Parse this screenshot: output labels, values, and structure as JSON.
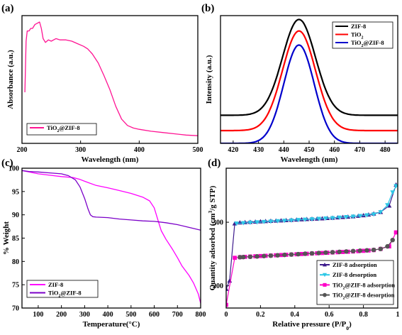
{
  "chart_data": [
    {
      "panel_label": "(a)",
      "type": "line",
      "xlabel": "Wavelength (nm)",
      "ylabel": "Absorbance (a.u.)",
      "xlim": [
        200,
        500
      ],
      "xticks": [
        200,
        300,
        400,
        500
      ],
      "ylim": [
        0,
        1
      ],
      "y_ticks_shown": false,
      "legend_position": "bottom-left",
      "series": [
        {
          "name": "TiO2@ZIF-8",
          "color": "#ff1493",
          "x": [
            205,
            207,
            209,
            212,
            215,
            218,
            222,
            226,
            230,
            233,
            236,
            240,
            245,
            250,
            258,
            265,
            275,
            285,
            295,
            305,
            312,
            320,
            330,
            340,
            350,
            360,
            370,
            380,
            390,
            400,
            420,
            440,
            460,
            480,
            500
          ],
          "y": [
            0.4,
            0.8,
            0.88,
            0.88,
            0.9,
            0.9,
            0.93,
            0.94,
            0.95,
            0.9,
            0.82,
            0.79,
            0.81,
            0.8,
            0.82,
            0.81,
            0.81,
            0.8,
            0.78,
            0.76,
            0.74,
            0.7,
            0.63,
            0.53,
            0.42,
            0.29,
            0.19,
            0.14,
            0.12,
            0.11,
            0.095,
            0.085,
            0.075,
            0.065,
            0.06
          ]
        }
      ]
    },
    {
      "panel_label": "(b)",
      "type": "line",
      "xlabel": "Wavelength (nm)",
      "ylabel": "Intensity (a.u.)",
      "xlim": [
        415,
        485
      ],
      "xticks": [
        420,
        430,
        440,
        450,
        460,
        470,
        480
      ],
      "ylim": [
        0,
        1
      ],
      "y_ticks_shown": false,
      "legend_position": "top-right",
      "series": [
        {
          "name": "ZIF-8",
          "color": "#000000",
          "center": 446,
          "baseline": 0.22,
          "peak": 0.97,
          "width": 6.5
        },
        {
          "name": "TiO2",
          "color": "#ff0000",
          "center": 446,
          "baseline": 0.1,
          "peak": 0.88,
          "width": 6.5
        },
        {
          "name": "TiO2@ZIF-8",
          "color": "#0000cc",
          "center": 446,
          "baseline": 0.0,
          "peak": 0.77,
          "width": 6.0
        }
      ]
    },
    {
      "panel_label": "(c)",
      "type": "line",
      "xlabel": "Temperature(°C)",
      "ylabel": "% Weight",
      "xlim": [
        30,
        800
      ],
      "xticks": [
        100,
        200,
        300,
        400,
        500,
        600,
        700,
        800
      ],
      "ylim": [
        70,
        100
      ],
      "yticks": [
        70,
        75,
        80,
        85,
        90,
        95,
        100
      ],
      "legend_position": "bottom-left",
      "series": [
        {
          "name": "ZIF-8",
          "color": "#ff00ff",
          "x": [
            30,
            60,
            100,
            150,
            200,
            250,
            280,
            300,
            350,
            400,
            450,
            500,
            550,
            580,
            600,
            615,
            630,
            650,
            680,
            700,
            720,
            750,
            770,
            790,
            800
          ],
          "y": [
            99.5,
            99.2,
            98.8,
            98.5,
            98.2,
            98.0,
            97.6,
            97.2,
            96.3,
            95.8,
            95.2,
            94.6,
            93.8,
            93.0,
            91.5,
            89.0,
            86.6,
            84.8,
            82.5,
            80.8,
            79.0,
            77.0,
            75.3,
            73.0,
            71.0
          ]
        },
        {
          "name": "TiO2@ZIF-8",
          "color": "#7b00c8",
          "x": [
            30,
            60,
            100,
            150,
            200,
            230,
            260,
            280,
            300,
            315,
            325,
            335,
            350,
            400,
            450,
            500,
            550,
            600,
            650,
            700,
            750,
            800
          ],
          "y": [
            99.5,
            99.3,
            99.2,
            99.0,
            98.8,
            98.4,
            97.5,
            96.0,
            93.5,
            91.2,
            90.0,
            89.6,
            89.5,
            89.4,
            89.1,
            88.9,
            88.7,
            88.6,
            88.3,
            87.9,
            87.3,
            86.7
          ]
        }
      ]
    },
    {
      "panel_label": "(d)",
      "type": "scatter",
      "xlabel": "Relative pressure (P/P0)",
      "ylabel": "Quantity adsorbed (cm3/g STP)",
      "xlim": [
        0,
        1
      ],
      "xticks": [
        0.0,
        0.2,
        0.4,
        0.6,
        0.8,
        1.0
      ],
      "ylim": [
        165,
        385
      ],
      "yticks": [
        200,
        300
      ],
      "legend_position": "bottom-right",
      "series": [
        {
          "name": "ZIF-8 adsorption",
          "color": "#3d1a8c",
          "marker": "triangle-up",
          "x": [
            0.0,
            0.02,
            0.05,
            0.08,
            0.11,
            0.14,
            0.17,
            0.2,
            0.23,
            0.26,
            0.29,
            0.32,
            0.35,
            0.38,
            0.41,
            0.44,
            0.47,
            0.5,
            0.53,
            0.56,
            0.59,
            0.62,
            0.65,
            0.68,
            0.71,
            0.74,
            0.77,
            0.8,
            0.83,
            0.86,
            0.9,
            0.95,
            0.99
          ],
          "y": [
            195,
            208,
            298,
            299.5,
            300,
            300.4,
            300.8,
            301.2,
            301.6,
            302,
            302.4,
            302.8,
            303.2,
            303.6,
            304,
            304.4,
            304.8,
            305.2,
            305.6,
            306,
            306.5,
            307,
            307.5,
            308,
            308.6,
            309.2,
            310,
            310.8,
            312,
            313.5,
            316,
            326,
            359
          ]
        },
        {
          "name": "ZIF-8 desorption",
          "color": "#2ec8e6",
          "marker": "triangle-down",
          "x": [
            0.99,
            0.97,
            0.94,
            0.9,
            0.86,
            0.82,
            0.78,
            0.74,
            0.7,
            0.66,
            0.62,
            0.58,
            0.54,
            0.5,
            0.46,
            0.42,
            0.38,
            0.34,
            0.3,
            0.26,
            0.22,
            0.18,
            0.14,
            0.1,
            0.06
          ],
          "y": [
            357,
            347,
            327,
            316,
            312.5,
            311,
            310,
            309,
            308.2,
            307.4,
            306.6,
            306,
            305.4,
            304.8,
            304.2,
            303.6,
            303,
            302.4,
            301.8,
            301.2,
            300.6,
            300,
            299.4,
            298.8,
            298
          ]
        },
        {
          "name": "TiO2@ZIF-8 adsorption",
          "color": "#ff00c8",
          "marker": "square",
          "x": [
            0.0,
            0.05,
            0.08,
            0.11,
            0.14,
            0.17,
            0.2,
            0.23,
            0.26,
            0.29,
            0.32,
            0.35,
            0.38,
            0.41,
            0.44,
            0.47,
            0.5,
            0.53,
            0.56,
            0.59,
            0.62,
            0.65,
            0.68,
            0.71,
            0.74,
            0.77,
            0.8,
            0.83,
            0.86,
            0.9,
            0.95,
            0.99
          ],
          "y": [
            170,
            244,
            245,
            245.5,
            246,
            246.4,
            246.8,
            247.2,
            247.6,
            248,
            248.4,
            248.8,
            249.2,
            249.6,
            250,
            250.4,
            250.8,
            251.2,
            251.6,
            252,
            252.4,
            252.8,
            253.2,
            253.6,
            254,
            254.5,
            255,
            255.6,
            256.2,
            258,
            262,
            284
          ]
        },
        {
          "name": "TiO2@ZIF-8 desorption",
          "color": "#555555",
          "marker": "circle",
          "x": [
            0.97,
            0.94,
            0.9,
            0.86,
            0.82,
            0.78,
            0.74,
            0.7,
            0.66,
            0.62,
            0.58,
            0.54,
            0.5,
            0.46,
            0.42,
            0.38,
            0.34,
            0.3,
            0.26,
            0.22,
            0.18,
            0.14,
            0.1,
            0.08
          ],
          "y": [
            272,
            262,
            258,
            256.5,
            255.8,
            255.2,
            254.6,
            254,
            253.4,
            252.8,
            252.2,
            251.6,
            251,
            250.4,
            249.8,
            249.2,
            248.6,
            248,
            247.4,
            246.8,
            246.2,
            245.6,
            245.2,
            245
          ]
        }
      ]
    }
  ]
}
